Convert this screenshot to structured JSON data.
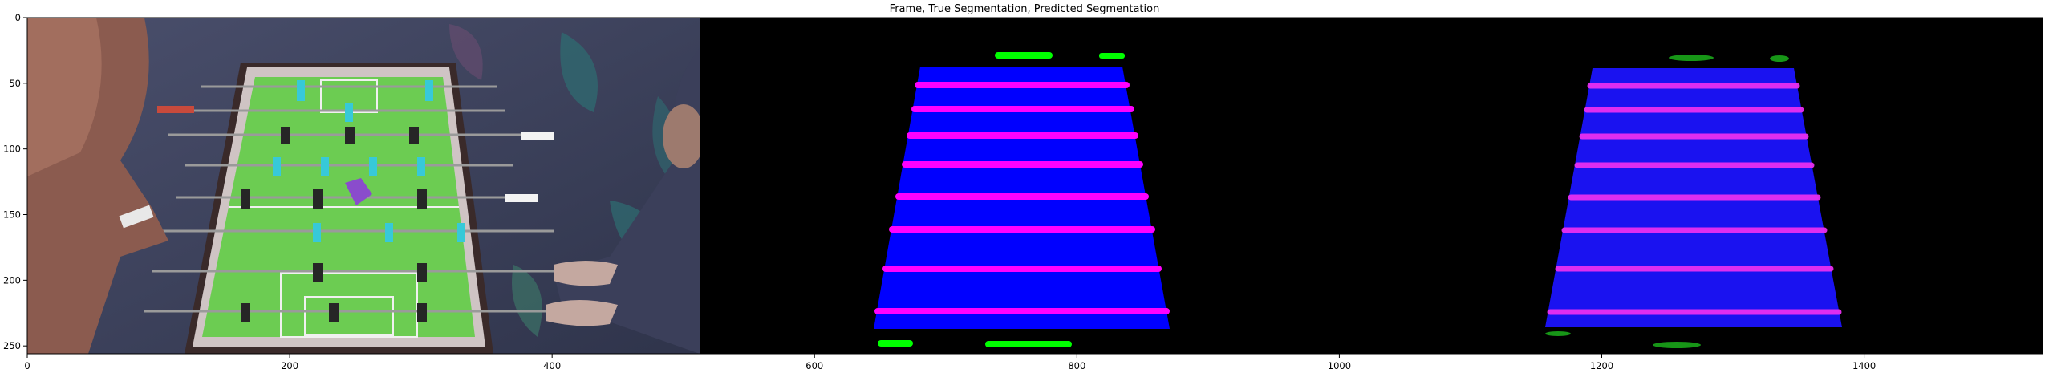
{
  "figure": {
    "title": "Frame, True Segmentation, Predicted Segmentation"
  },
  "axes": {
    "x_ticks": [
      0,
      200,
      400,
      600,
      800,
      1000,
      1200,
      1400
    ],
    "y_ticks": [
      0,
      50,
      100,
      150,
      200,
      250
    ],
    "x_range": [
      0,
      1536
    ],
    "y_range": [
      0,
      256
    ]
  },
  "colors": {
    "field_green": "#6ccc52",
    "table_frame": "#cfc4c4",
    "carpet": "#3b4059",
    "player_cyan": "#37c9d8",
    "player_dark": "#262626",
    "rod_gray": "#9a9a9a",
    "seg_blue": "#0000ff",
    "seg_magenta": "#ff00ff",
    "seg_green": "#00ff00",
    "seg_black": "#000000"
  },
  "icons": {
    "frame_image": "foosball-table-photo",
    "true_mask": "segmentation-mask",
    "pred_mask": "segmentation-mask"
  }
}
